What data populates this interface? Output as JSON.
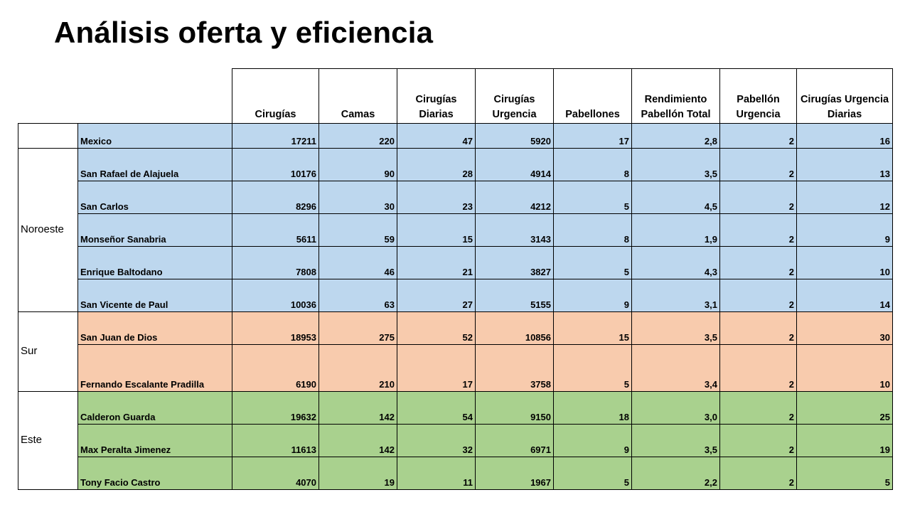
{
  "title": "Análisis oferta y eficiencia",
  "columns": [
    "Cirugías",
    "Camas",
    "Cirugías Diarias",
    "Cirugías Urgencia",
    "Pabellones",
    "Rendimiento Pabellón Total",
    "Pabellón Urgencia",
    "Cirugías Urgencia Diarias"
  ],
  "row_colors": {
    "blue": "#bdd7ee",
    "orange": "#f8cbad",
    "green": "#a9d18e"
  },
  "regions": {
    "noroeste": "Noroeste",
    "sur": "Sur",
    "este": "Este"
  },
  "rows": [
    {
      "name": "Mexico",
      "values": [
        "17211",
        "220",
        "47",
        "5920",
        "17",
        "2,8",
        "2",
        "16"
      ]
    },
    {
      "name": "San Rafael de Alajuela",
      "values": [
        "10176",
        "90",
        "28",
        "4914",
        "8",
        "3,5",
        "2",
        "13"
      ]
    },
    {
      "name": "San Carlos",
      "values": [
        "8296",
        "30",
        "23",
        "4212",
        "5",
        "4,5",
        "2",
        "12"
      ]
    },
    {
      "name": "Monseñor Sanabria",
      "values": [
        "5611",
        "59",
        "15",
        "3143",
        "8",
        "1,9",
        "2",
        "9"
      ]
    },
    {
      "name": "Enrique Baltodano",
      "values": [
        "7808",
        "46",
        "21",
        "3827",
        "5",
        "4,3",
        "2",
        "10"
      ]
    },
    {
      "name": "San Vicente de Paul",
      "values": [
        "10036",
        "63",
        "27",
        "5155",
        "9",
        "3,1",
        "2",
        "14"
      ]
    },
    {
      "name": "San Juan de Dios",
      "values": [
        "18953",
        "275",
        "52",
        "10856",
        "15",
        "3,5",
        "2",
        "30"
      ]
    },
    {
      "name": "Fernando Escalante Pradilla",
      "values": [
        "6190",
        "210",
        "17",
        "3758",
        "5",
        "3,4",
        "2",
        "10"
      ]
    },
    {
      "name": "Calderon Guarda",
      "values": [
        "19632",
        "142",
        "54",
        "9150",
        "18",
        "3,0",
        "2",
        "25"
      ]
    },
    {
      "name": "Max Peralta Jimenez",
      "values": [
        "11613",
        "142",
        "32",
        "6971",
        "9",
        "3,5",
        "2",
        "19"
      ]
    },
    {
      "name": "Tony Facio Castro",
      "values": [
        "4070",
        "19",
        "11",
        "1967",
        "5",
        "2,2",
        "2",
        "5"
      ]
    }
  ]
}
